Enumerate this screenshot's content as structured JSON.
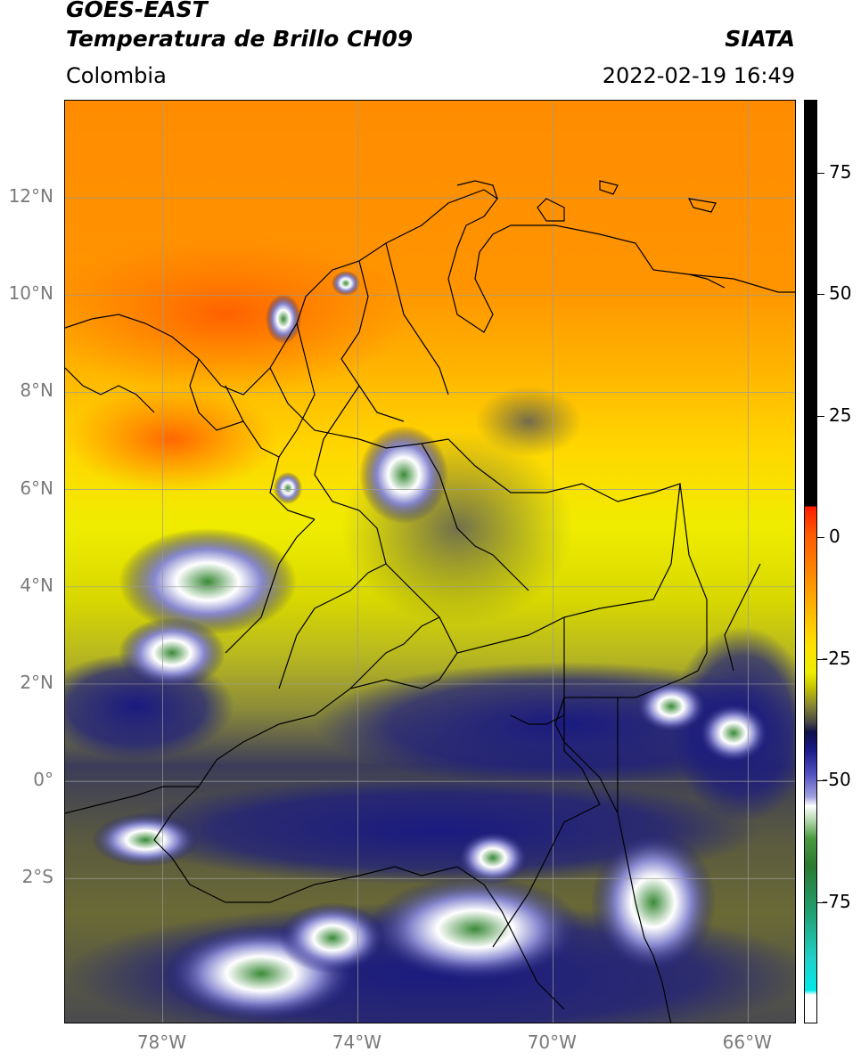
{
  "header": {
    "source": "GOES-EAST",
    "product": "Temperatura de Brillo CH09",
    "organization": "SIATA",
    "region": "Colombia",
    "datetime": "2022-02-19 16:49"
  },
  "map": {
    "lon_range": [
      -80,
      -65
    ],
    "lat_range": [
      -5,
      14
    ],
    "grid": true,
    "grid_color": "#9a9a9a",
    "coast_color": "#000000",
    "lat_ticks": [
      {
        "value": 12,
        "label": "12°N"
      },
      {
        "value": 10,
        "label": "10°N"
      },
      {
        "value": 8,
        "label": "8°N"
      },
      {
        "value": 6,
        "label": "6°N"
      },
      {
        "value": 4,
        "label": "4°N"
      },
      {
        "value": 2,
        "label": "2°N"
      },
      {
        "value": 0,
        "label": "0°"
      },
      {
        "value": -2,
        "label": "2°S"
      }
    ],
    "lon_ticks": [
      {
        "value": -78,
        "label": "78°W"
      },
      {
        "value": -74,
        "label": "74°W"
      },
      {
        "value": -70,
        "label": "70°W"
      },
      {
        "value": -66,
        "label": "66°W"
      }
    ]
  },
  "colorbar": {
    "range": [
      -100,
      90
    ],
    "ticks": [
      {
        "value": 75,
        "label": "75"
      },
      {
        "value": 50,
        "label": "50"
      },
      {
        "value": 25,
        "label": "25"
      },
      {
        "value": 0,
        "label": "0"
      },
      {
        "value": -25,
        "label": "-25"
      },
      {
        "value": -50,
        "label": "-50"
      },
      {
        "value": -75,
        "label": "-75"
      }
    ]
  }
}
